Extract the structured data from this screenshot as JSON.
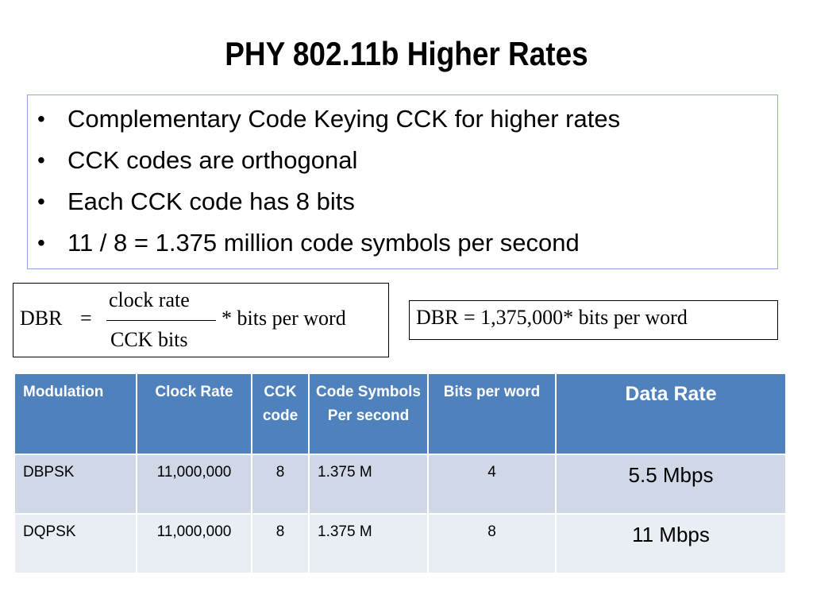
{
  "title": "PHY 802.11b Higher Rates",
  "bullets": [
    "Complementary Code Keying CCK for higher rates",
    "CCK codes are orthogonal",
    "Each CCK code has 8 bits",
    "11 / 8 = 1.375 million code symbols per second"
  ],
  "bullet_glyph": "•",
  "formula1": {
    "lhs": "DBR",
    "equals": "=",
    "numerator": "clock rate",
    "denominator": "CCK bits",
    "rhs": "* bits per word"
  },
  "formula2": {
    "text": "DBR = 1,375,000* bits per word"
  },
  "table": {
    "headers": [
      "Modulation",
      "Clock Rate",
      "CCK code",
      "Code Symbols Per second",
      "Bits per word",
      "Data Rate"
    ],
    "rows": [
      [
        "DBPSK",
        "11,000,000",
        "8",
        "1.375 M",
        "4",
        "5.5 Mbps"
      ],
      [
        "DQPSK",
        "11,000,000",
        "8",
        "1.375 M",
        "8",
        "11 Mbps"
      ]
    ]
  },
  "colors": {
    "header_bg": "#4f81bd",
    "row1_bg": "#d0d8e8",
    "row2_bg": "#e9edf4",
    "box_border": "#8eaadb"
  }
}
